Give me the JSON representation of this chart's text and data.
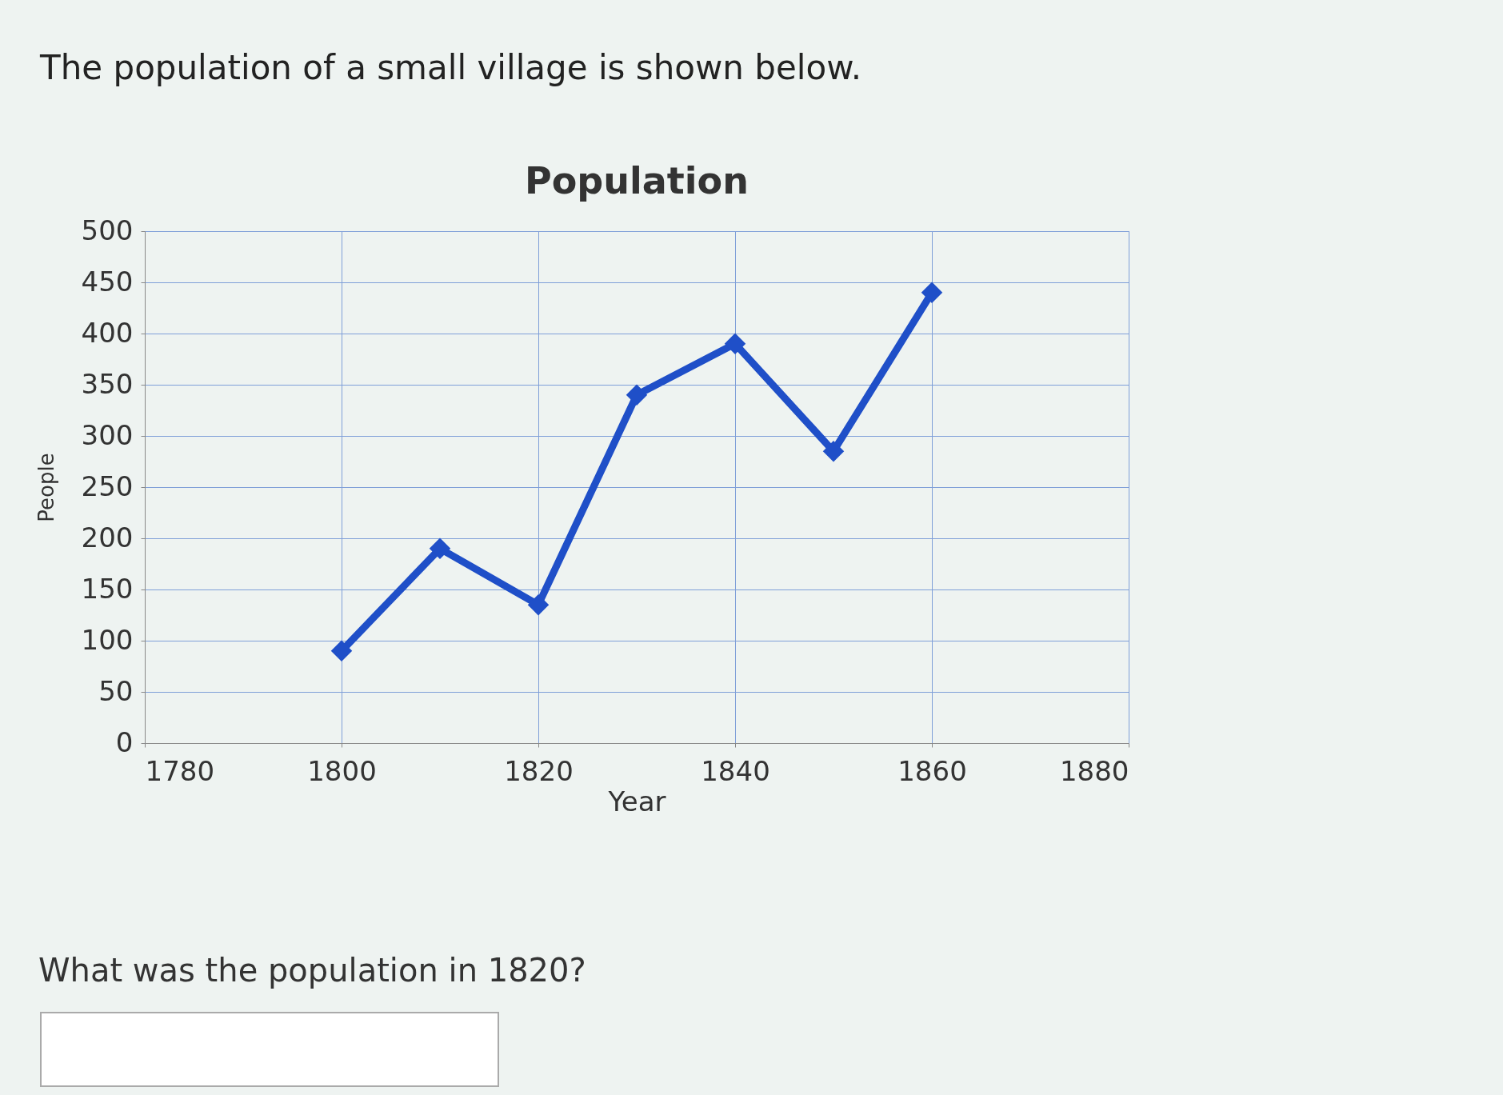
{
  "chart_data": {
    "type": "line",
    "title": "Population",
    "xlabel": "Year",
    "ylabel": "People",
    "annotations": [
      "The population of a small village is shown below.",
      "What was the population in 1820?"
    ],
    "x": [
      1800,
      1810,
      1820,
      1830,
      1840,
      1850,
      1860
    ],
    "series": [
      {
        "color": "#1f4fc8",
        "values": [
          90,
          190,
          135,
          340,
          390,
          285,
          440
        ]
      }
    ],
    "xlim": [
      1780,
      1880
    ],
    "xticks": [
      1780,
      1800,
      1820,
      1840,
      1860,
      1880
    ],
    "ylim": [
      0,
      500
    ],
    "yticks": [
      0,
      50,
      100,
      150,
      200,
      250,
      300,
      350,
      400,
      450,
      500
    ],
    "grid": true,
    "marker": "diamond",
    "line_style": "solid"
  }
}
